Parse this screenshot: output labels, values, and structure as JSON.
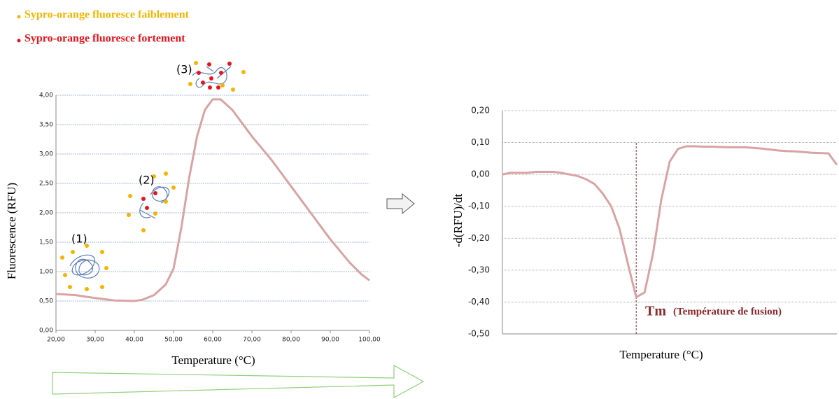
{
  "legend": [
    {
      "text": "Sypro-orange fluoresce faiblement",
      "color": "#f4b400"
    },
    {
      "text": "Sypro-orange fluoresce fortement",
      "color": "#e8141c"
    }
  ],
  "chart_data": [
    {
      "type": "line",
      "x_label": "Temperature (°C)",
      "y_label": "Fluorescence (RFU)",
      "annotations": [
        "(1)",
        "(2)",
        "(3)"
      ],
      "x": [
        20,
        25,
        30,
        35,
        40,
        42,
        45,
        48,
        50,
        52,
        54,
        56,
        58,
        60,
        62,
        65,
        70,
        75,
        80,
        85,
        90,
        95,
        98,
        100
      ],
      "values": [
        0.62,
        0.6,
        0.55,
        0.51,
        0.5,
        0.52,
        0.6,
        0.78,
        1.05,
        1.75,
        2.6,
        3.3,
        3.75,
        3.93,
        3.93,
        3.75,
        3.3,
        2.9,
        2.45,
        2.0,
        1.55,
        1.15,
        0.95,
        0.85
      ],
      "color": "#d9a3a3",
      "xlim": [
        20,
        100
      ],
      "xticks": [
        {
          "value": 20,
          "label": "20,00"
        },
        {
          "value": 30,
          "label": "30,00"
        },
        {
          "value": 40,
          "label": "40,00"
        },
        {
          "value": 50,
          "label": "50,00"
        },
        {
          "value": 60,
          "label": "60,00"
        },
        {
          "value": 70,
          "label": "70,00"
        },
        {
          "value": 80,
          "label": "80,00"
        },
        {
          "value": 90,
          "label": "90,00"
        },
        {
          "value": 100,
          "label": "100,00"
        }
      ],
      "ylim": [
        0,
        4
      ],
      "yticks": [
        {
          "value": 0,
          "label": "0,00"
        },
        {
          "value": 0.5,
          "label": "0,50"
        },
        {
          "value": 1,
          "label": "1,00"
        },
        {
          "value": 1.5,
          "label": "1,50"
        },
        {
          "value": 2,
          "label": "2,00"
        },
        {
          "value": 2.5,
          "label": "2,50"
        },
        {
          "value": 3,
          "label": "3,00"
        },
        {
          "value": 3.5,
          "label": "3,50"
        },
        {
          "value": 4,
          "label": "4,00"
        }
      ],
      "grid": true,
      "grid_color": "#8ea6d4"
    },
    {
      "type": "line",
      "x_label": "Temperature (°C)",
      "y_label": "-d(RFU)/dt",
      "annotations": [
        "Tm",
        "(Température de fusion)"
      ],
      "values": [
        0.0,
        0.005,
        0.005,
        0.005,
        0.008,
        0.008,
        0.008,
        0.005,
        0.0,
        -0.005,
        -0.015,
        -0.03,
        -0.06,
        -0.1,
        -0.17,
        -0.28,
        -0.385,
        -0.37,
        -0.25,
        -0.08,
        0.04,
        0.08,
        0.088,
        0.088,
        0.087,
        0.087,
        0.086,
        0.085,
        0.085,
        0.085,
        0.083,
        0.081,
        0.078,
        0.075,
        0.073,
        0.072,
        0.07,
        0.068,
        0.067,
        0.066,
        0.03
      ],
      "color": "#d9a3a3",
      "ylim": [
        -0.5,
        0.2
      ],
      "yticks": [
        {
          "value": 0.2,
          "label": "0,20"
        },
        {
          "value": 0.1,
          "label": "0,10"
        },
        {
          "value": 0,
          "label": "0,00"
        },
        {
          "value": -0.1,
          "label": "-0,10"
        },
        {
          "value": -0.2,
          "label": "-0,20"
        },
        {
          "value": -0.3,
          "label": "-0,30"
        },
        {
          "value": -0.4,
          "label": "-0,40"
        },
        {
          "value": -0.5,
          "label": "-0,50"
        }
      ],
      "grid": true,
      "grid_color": "#999999"
    }
  ]
}
